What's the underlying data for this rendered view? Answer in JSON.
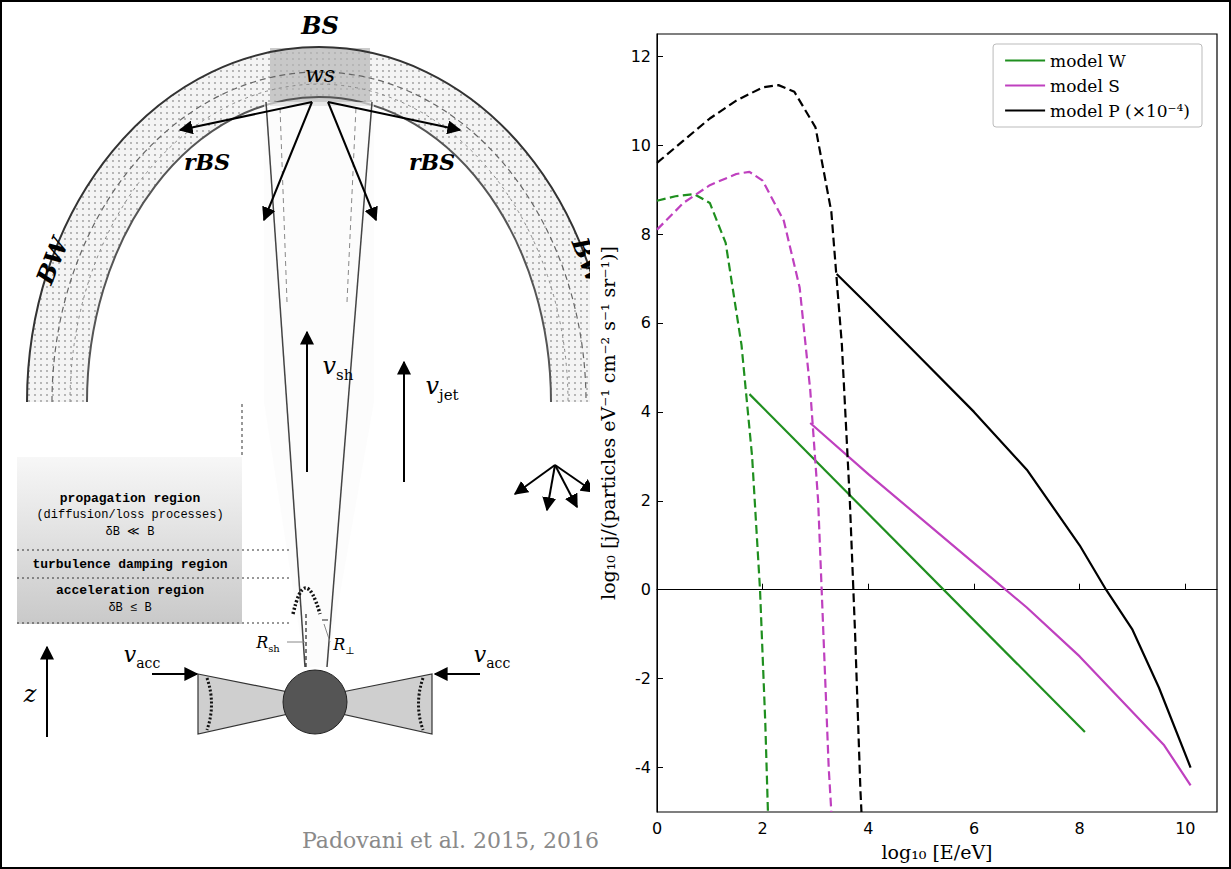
{
  "chart_data": {
    "type": "line",
    "xlabel": "log₁₀ [E/eV]",
    "ylabel": "log₁₀ [j/(particles eV⁻¹ cm⁻² s⁻¹ sr⁻¹)]",
    "xlim": [
      0,
      10.6
    ],
    "ylim": [
      -5,
      12.5
    ],
    "xticks": [
      0,
      2,
      4,
      6,
      8,
      10
    ],
    "yticks": [
      -4,
      -2,
      0,
      2,
      4,
      6,
      8,
      10,
      12
    ],
    "grid": false,
    "legend": "upper right",
    "series": [
      {
        "name": "model W",
        "color": "#1f8f1f",
        "line_style": "solid",
        "x": [
          1.75,
          8.1
        ],
        "values": [
          4.4,
          -3.2
        ]
      },
      {
        "name": "model W",
        "color": "#1f8f1f",
        "line_style": "dashed",
        "x": [
          0,
          0.35,
          0.7,
          1.0,
          1.3,
          1.6,
          1.8,
          1.95,
          2.05,
          2.1
        ],
        "values": [
          8.75,
          8.85,
          8.9,
          8.7,
          7.8,
          5.5,
          3.0,
          0.0,
          -3.0,
          -5.0
        ]
      },
      {
        "name": "model S",
        "color": "#bf40bf",
        "line_style": "solid",
        "x": [
          2.9,
          4,
          5,
          6,
          7,
          8,
          9,
          9.6,
          10.1
        ],
        "values": [
          3.75,
          2.6,
          1.6,
          0.6,
          -0.4,
          -1.5,
          -2.75,
          -3.5,
          -4.4
        ]
      },
      {
        "name": "model S",
        "color": "#bf40bf",
        "line_style": "dashed",
        "x": [
          0,
          0.5,
          1.0,
          1.5,
          1.75,
          2.0,
          2.4,
          2.7,
          2.9,
          3.05,
          3.15,
          3.25,
          3.3
        ],
        "values": [
          8.1,
          8.7,
          9.1,
          9.35,
          9.4,
          9.2,
          8.3,
          6.8,
          4.5,
          2.0,
          -1.0,
          -4.0,
          -5.0
        ]
      },
      {
        "name": "model P (×10⁻⁴)",
        "color": "#000000",
        "line_style": "solid",
        "x": [
          3.4,
          4,
          5,
          6,
          7,
          8,
          8.5,
          9,
          9.5,
          10.1
        ],
        "values": [
          7.1,
          6.4,
          5.2,
          4.0,
          2.7,
          1.0,
          0.0,
          -0.9,
          -2.2,
          -4.0
        ]
      },
      {
        "name": "model P (×10⁻⁴)",
        "color": "#000000",
        "line_style": "dashed",
        "x": [
          0,
          0.5,
          1.0,
          1.5,
          2.0,
          2.3,
          2.6,
          3.0,
          3.3,
          3.5,
          3.65,
          3.75,
          3.85,
          3.87
        ],
        "values": [
          9.6,
          10.1,
          10.6,
          11.0,
          11.3,
          11.35,
          11.2,
          10.4,
          8.5,
          5.5,
          2.0,
          -1.0,
          -4.5,
          -5.0
        ]
      }
    ]
  },
  "diagram": {
    "bow_shock": "BS",
    "working_surface": "ws",
    "reverse_bow_shock": "rBS",
    "bubble_wall": "BW",
    "regions": [
      {
        "name": "propagation region",
        "note": "(diffusion/loss processes)",
        "condition": "δB ≪ B"
      },
      {
        "name": "turbulence damping region"
      },
      {
        "name": "acceleration region",
        "condition": "δB ≤ B"
      }
    ],
    "shock_velocity": {
      "symbol": "v",
      "sub": "sh"
    },
    "jet_velocity": {
      "symbol": "v",
      "sub": "jet"
    },
    "accretion_velocity": {
      "symbol": "v",
      "sub": "acc"
    },
    "shock_radius": {
      "symbol": "R",
      "sub": "sh"
    },
    "perpendicular_radius": {
      "symbol": "R",
      "sub": "⊥"
    },
    "height_axis": "z"
  },
  "caption": "Padovani et al. 2015, 2016"
}
